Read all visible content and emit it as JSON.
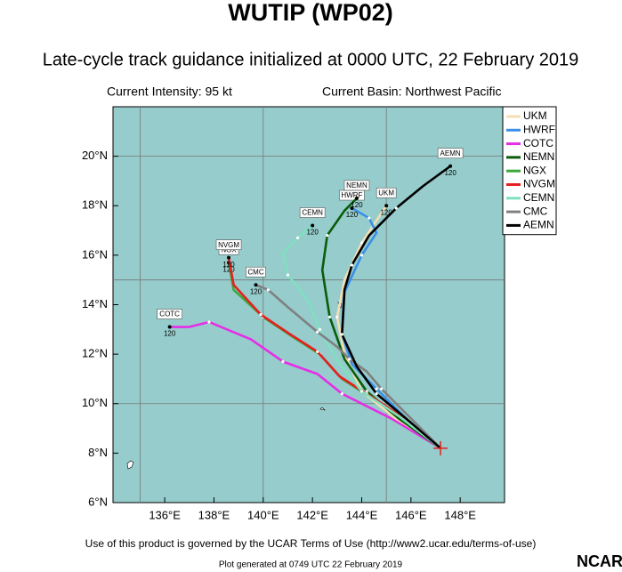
{
  "chart_data": {
    "type": "track",
    "title": "WUTIP (WP02)",
    "subtitle": "Late-cycle track guidance initialized at 0000 UTC, 22 February 2019",
    "intensity": "Current Intensity: 95 kt",
    "basin": "Current Basin: Northwest Pacific",
    "footer": "Use of this product is governed by the UCAR Terms of Use (http://www2.ucar.edu/terms-of-use)",
    "generated": "Plot generated at 0749 UTC  22 February 2019",
    "logo": "NCAR",
    "xlim": [
      133.9,
      149.8
    ],
    "ylim": [
      6,
      22
    ],
    "xticks": [
      {
        "value": 136,
        "label": "136°E"
      },
      {
        "value": 138,
        "label": "138°E"
      },
      {
        "value": 140,
        "label": "140°E"
      },
      {
        "value": 142,
        "label": "142°E"
      },
      {
        "value": 144,
        "label": "144°E"
      },
      {
        "value": 146,
        "label": "146°E"
      },
      {
        "value": 148,
        "label": "148°E"
      }
    ],
    "yticks": [
      {
        "value": 6,
        "label": "6°N"
      },
      {
        "value": 8,
        "label": "8°N"
      },
      {
        "value": 10,
        "label": "10°N"
      },
      {
        "value": 12,
        "label": "12°N"
      },
      {
        "value": 14,
        "label": "14°N"
      },
      {
        "value": 16,
        "label": "16°N"
      },
      {
        "value": 18,
        "label": "18°N"
      },
      {
        "value": 20,
        "label": "20°N"
      }
    ],
    "grid_x": [
      135,
      140,
      145
    ],
    "grid_y": [
      10,
      15,
      20
    ],
    "current_position": [
      147.2,
      8.2
    ],
    "legend": "upper right outside",
    "series": [
      {
        "name": "UKM",
        "color": "#f5deb3",
        "end_label": "120",
        "x": [
          147.2,
          145.5,
          144,
          143.3,
          143,
          143.3,
          144,
          145
        ],
        "values": [
          8.2,
          9.3,
          10.5,
          12,
          13.5,
          15,
          16.5,
          18
        ]
      },
      {
        "name": "HWRF",
        "color": "#3b8fe6",
        "end_label": "120",
        "x": [
          147.2,
          145.8,
          144.6,
          143.6,
          143.2,
          143.3,
          144,
          144.6,
          144.3,
          143.6
        ],
        "values": [
          8.2,
          9.4,
          10.6,
          11.6,
          12.8,
          14.5,
          16,
          16.9,
          17.5,
          17.9
        ]
      },
      {
        "name": "COTC",
        "color": "#e62ee6",
        "end_label": "120",
        "x": [
          147.2,
          145.2,
          143.2,
          142.2,
          140.8,
          139.5,
          137.8,
          137,
          136.2
        ],
        "values": [
          8.2,
          9.4,
          10.4,
          11.2,
          11.7,
          12.6,
          13.3,
          13.1,
          13.1
        ]
      },
      {
        "name": "NEMN",
        "color": "#0a5c0a",
        "end_label": "120",
        "x": [
          147.2,
          145.5,
          144.2,
          143.3,
          142.7,
          142.4,
          142.6,
          143.3,
          143.8
        ],
        "values": [
          8.2,
          9.4,
          10.5,
          11.8,
          13.5,
          15.4,
          16.8,
          17.8,
          18.3
        ]
      },
      {
        "name": "NGX",
        "color": "#3aa83a",
        "end_label": "120",
        "x": [
          147.2,
          145.6,
          144.3,
          143.2,
          142.3,
          141.2,
          140,
          138.8,
          138.6
        ],
        "values": [
          8.2,
          9.5,
          10.3,
          11,
          12,
          12.7,
          13.5,
          14.6,
          15.7
        ]
      },
      {
        "name": "NVGM",
        "color": "#e62020",
        "end_label": "120",
        "x": [
          147.2,
          145.6,
          144.2,
          143.1,
          142.2,
          141.1,
          139.9,
          138.8,
          138.6
        ],
        "values": [
          8.2,
          9.5,
          10.4,
          11.1,
          12.1,
          12.8,
          13.6,
          14.8,
          15.9
        ]
      },
      {
        "name": "CEMN",
        "color": "#7fe0c0",
        "end_label": "120",
        "x": [
          147.2,
          145.5,
          144,
          143.1,
          142.3,
          141.8,
          141,
          140.8,
          141.4,
          142
        ],
        "values": [
          8.2,
          9.5,
          10.5,
          11.6,
          13,
          14.2,
          15.2,
          16.1,
          16.7,
          17.2
        ]
      },
      {
        "name": "CMC",
        "color": "#808080",
        "end_label": "120",
        "x": [
          147.2,
          145.8,
          144.8,
          144.2,
          143.5,
          143,
          142.2,
          141,
          140.2,
          139.7
        ],
        "values": [
          8.2,
          9.6,
          10.6,
          11.3,
          11.8,
          12.3,
          12.9,
          13.9,
          14.6,
          14.8
        ]
      },
      {
        "name": "AEMN",
        "color": "#000000",
        "end_label": "120",
        "x": [
          147.2,
          145.8,
          144.6,
          143.8,
          143.2,
          143.3,
          143.6,
          144.3,
          145.4,
          146.5,
          147.6
        ],
        "values": [
          8.2,
          9.4,
          10.4,
          11.5,
          12.8,
          14.6,
          15.6,
          16.8,
          17.9,
          18.8,
          19.6
        ]
      }
    ]
  }
}
